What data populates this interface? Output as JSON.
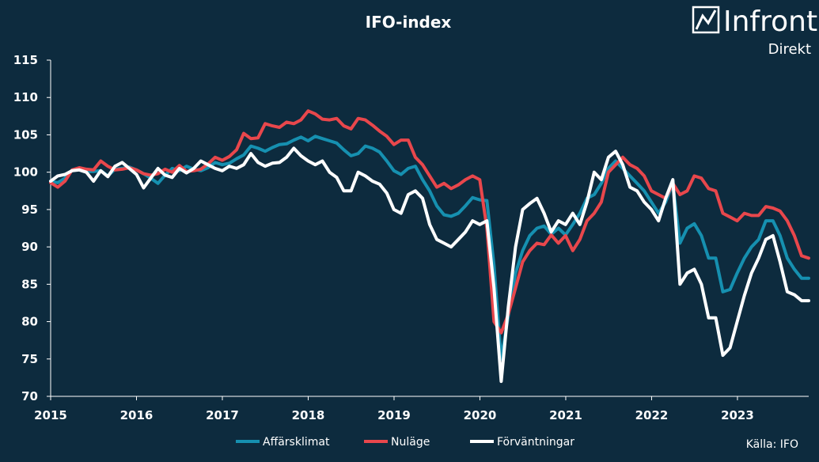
{
  "logo": {
    "name": "Infront",
    "sub": "Direkt"
  },
  "source": "Källa: IFO",
  "chart_data": {
    "type": "line",
    "title": "IFO-index",
    "ylim": [
      70,
      115
    ],
    "yticks": [
      70,
      75,
      80,
      85,
      90,
      95,
      100,
      105,
      110,
      115
    ],
    "xlim": [
      2015,
      2023.83
    ],
    "xticks": [
      2015,
      2016,
      2017,
      2018,
      2019,
      2020,
      2021,
      2022,
      2023
    ],
    "grid": "none",
    "legend": "bottom",
    "series": [
      {
        "name": "Affärsklimat",
        "color": "#1690b0",
        "values": [
          98.8,
          98.6,
          99.2,
          100.3,
          100.4,
          100.1,
          100.1,
          100.2,
          99.5,
          100.4,
          100.5,
          100.7,
          100.3,
          99.8,
          99.2,
          98.5,
          99.6,
          100.5,
          100.2,
          100.8,
          100.4,
          100.2,
          100.6,
          101.3,
          101.0,
          101.2,
          101.8,
          102.3,
          103.5,
          103.2,
          102.8,
          103.3,
          103.7,
          103.8,
          104.3,
          104.7,
          104.2,
          104.8,
          104.5,
          104.2,
          103.9,
          103.0,
          102.2,
          102.5,
          103.5,
          103.2,
          102.7,
          101.5,
          100.2,
          99.7,
          100.5,
          100.8,
          99.0,
          97.5,
          95.5,
          94.3,
          94.1,
          94.5,
          95.5,
          96.6,
          96.3,
          96.2,
          87.5,
          75.0,
          80.8,
          86.5,
          89.5,
          91.5,
          92.5,
          92.8,
          91.7,
          92.5,
          91.6,
          93.0,
          94.5,
          96.5,
          97.0,
          98.5,
          100.5,
          101.5,
          100.5,
          99.5,
          98.5,
          97.5,
          96.0,
          94.5,
          96.0,
          98.5,
          90.5,
          92.5,
          93.1,
          91.5,
          88.5,
          88.5,
          84.0,
          84.3,
          86.5,
          88.5,
          90.0,
          91.0,
          93.5,
          93.5,
          91.5,
          88.5,
          87.0,
          85.8,
          85.8
        ]
      },
      {
        "name": "Nuläge",
        "color": "#e8474c",
        "values": [
          98.6,
          98.0,
          98.8,
          100.3,
          100.6,
          100.4,
          100.3,
          101.5,
          100.8,
          100.3,
          100.4,
          100.6,
          100.3,
          99.8,
          99.6,
          99.8,
          100.4,
          100.0,
          100.9,
          100.1,
          100.2,
          100.4,
          101.1,
          102.0,
          101.6,
          102.1,
          103.0,
          105.2,
          104.5,
          104.6,
          106.5,
          106.2,
          106.0,
          106.7,
          106.5,
          107.0,
          108.2,
          107.8,
          107.1,
          107.0,
          107.2,
          106.2,
          105.8,
          107.2,
          107.0,
          106.3,
          105.5,
          104.8,
          103.7,
          104.3,
          104.3,
          102.0,
          101.0,
          99.5,
          98.0,
          98.5,
          97.8,
          98.3,
          99.0,
          99.5,
          99.0,
          92.5,
          80.0,
          78.5,
          81.0,
          84.5,
          88.0,
          89.5,
          90.5,
          90.3,
          91.6,
          90.5,
          91.5,
          89.5,
          91.0,
          93.5,
          94.5,
          96.0,
          100.0,
          101.0,
          102.0,
          101.0,
          100.5,
          99.5,
          97.5,
          97.0,
          96.5,
          98.5,
          97.0,
          97.5,
          99.5,
          99.2,
          97.8,
          97.5,
          94.5,
          94.0,
          93.5,
          94.5,
          94.2,
          94.2,
          95.4,
          95.2,
          94.8,
          93.5,
          91.5,
          88.8,
          88.5
        ]
      },
      {
        "name": "Förväntningar",
        "color": "#ffffff",
        "values": [
          98.8,
          99.5,
          99.7,
          100.2,
          100.3,
          100.0,
          98.8,
          100.2,
          99.4,
          100.8,
          101.3,
          100.5,
          99.7,
          97.9,
          99.2,
          100.5,
          99.6,
          99.3,
          100.5,
          99.9,
          100.5,
          101.5,
          101.0,
          100.5,
          100.2,
          100.8,
          100.5,
          101.0,
          102.5,
          101.3,
          100.8,
          101.2,
          101.3,
          102.0,
          103.2,
          102.2,
          101.5,
          101.0,
          101.5,
          100.0,
          99.3,
          97.5,
          97.5,
          100.0,
          99.5,
          98.8,
          98.4,
          97.2,
          95.0,
          94.5,
          97.0,
          97.5,
          96.5,
          93.0,
          91.0,
          90.5,
          90.0,
          91.0,
          92.0,
          93.5,
          93.0,
          93.5,
          84.5,
          72.0,
          82.0,
          90.0,
          95.0,
          95.8,
          96.5,
          94.5,
          92.0,
          93.5,
          93.0,
          94.5,
          93.0,
          96.0,
          100.0,
          99.0,
          102.0,
          102.8,
          101.0,
          98.0,
          97.5,
          96.0,
          95.0,
          93.5,
          96.5,
          99.0,
          85.0,
          86.5,
          87.0,
          85.0,
          80.5,
          80.5,
          75.5,
          76.5,
          80.0,
          83.5,
          86.5,
          88.5,
          91.0,
          91.5,
          88.0,
          84.0,
          83.6,
          82.8,
          82.8
        ]
      }
    ]
  }
}
